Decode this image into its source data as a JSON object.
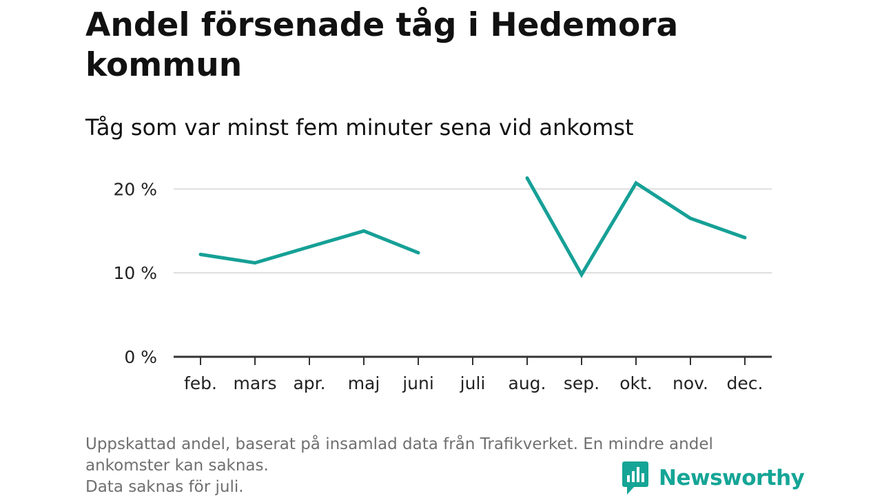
{
  "header": {
    "title": "Andel försenade tåg i Hedemora kommun",
    "subtitle": "Tåg som var minst fem minuter sena vid ankomst"
  },
  "chart_data": {
    "type": "line",
    "title": "Andel försenade tåg i Hedemora kommun",
    "subtitle": "Tåg som var minst fem minuter sena vid ankomst",
    "categories": [
      "feb.",
      "mars",
      "apr.",
      "maj",
      "juni",
      "juli",
      "aug.",
      "sep.",
      "okt.",
      "nov.",
      "dec."
    ],
    "series": [
      {
        "values": [
          12.2,
          11.2,
          13.1,
          15.0,
          12.4,
          null,
          21.3,
          9.8,
          20.7,
          16.5,
          14.2
        ]
      }
    ],
    "yticks": [
      {
        "value": 0,
        "label": "0 %"
      },
      {
        "value": 10,
        "label": "10 %"
      },
      {
        "value": 20,
        "label": "20 %"
      }
    ],
    "ylim": [
      0,
      22
    ],
    "grid": true,
    "line_color": "#16a096",
    "gridline_color": "#dddddd",
    "axis_color": "#333333"
  },
  "footer": {
    "note_lines": [
      "Uppskattad andel, baserat på insamlad data från Trafikverket. En mindre andel ankomster kan saknas.",
      "Data saknas för juli."
    ],
    "brand": {
      "name": "Newsworthy",
      "color": "#15a596",
      "icon": "newsworthy-logo-icon"
    }
  }
}
